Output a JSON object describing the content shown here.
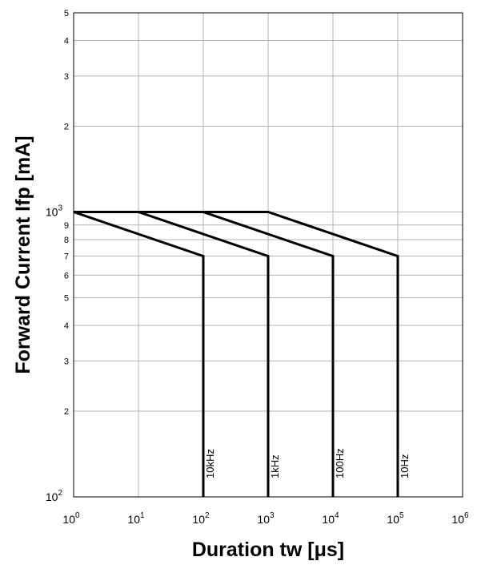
{
  "chart_data": {
    "type": "line",
    "title": "",
    "xlabel": "Duration tw [μs]",
    "ylabel": "Forward Current Ifp [mA]",
    "x_scale": "log",
    "y_scale": "log",
    "xlim": [
      1,
      1000000
    ],
    "ylim": [
      100,
      5000
    ],
    "grid": true,
    "legend": "none",
    "x_ticks": [
      {
        "base": "10",
        "exp": "0",
        "value": 1
      },
      {
        "base": "10",
        "exp": "1",
        "value": 10
      },
      {
        "base": "10",
        "exp": "2",
        "value": 100
      },
      {
        "base": "10",
        "exp": "3",
        "value": 1000
      },
      {
        "base": "10",
        "exp": "4",
        "value": 10000
      },
      {
        "base": "10",
        "exp": "5",
        "value": 100000
      },
      {
        "base": "10",
        "exp": "6",
        "value": 1000000
      }
    ],
    "y_major_ticks": [
      {
        "base": "10",
        "exp": "2",
        "value": 100
      },
      {
        "base": "10",
        "exp": "3",
        "value": 1000
      }
    ],
    "y_minor_ticks": [
      {
        "label": "2",
        "value": 200
      },
      {
        "label": "3",
        "value": 300
      },
      {
        "label": "4",
        "value": 400
      },
      {
        "label": "5",
        "value": 500
      },
      {
        "label": "6",
        "value": 600
      },
      {
        "label": "7",
        "value": 700
      },
      {
        "label": "8",
        "value": 800
      },
      {
        "label": "9",
        "value": 900
      },
      {
        "label": "2",
        "value": 2000
      },
      {
        "label": "3",
        "value": 3000
      },
      {
        "label": "4",
        "value": 4000
      },
      {
        "label": "5",
        "value": 5000
      }
    ],
    "series": [
      {
        "name": "10kHz",
        "x": [
          1,
          1,
          100,
          100
        ],
        "y": [
          1000,
          1000,
          700,
          100
        ]
      },
      {
        "name": "1kHz",
        "x": [
          1,
          10,
          1000,
          1000
        ],
        "y": [
          1000,
          1000,
          700,
          100
        ]
      },
      {
        "name": "100Hz",
        "x": [
          1,
          100,
          10000,
          10000
        ],
        "y": [
          1000,
          1000,
          700,
          100
        ]
      },
      {
        "name": "10Hz",
        "x": [
          1,
          1000,
          100000,
          100000
        ],
        "y": [
          1000,
          1000,
          700,
          100
        ]
      }
    ]
  }
}
